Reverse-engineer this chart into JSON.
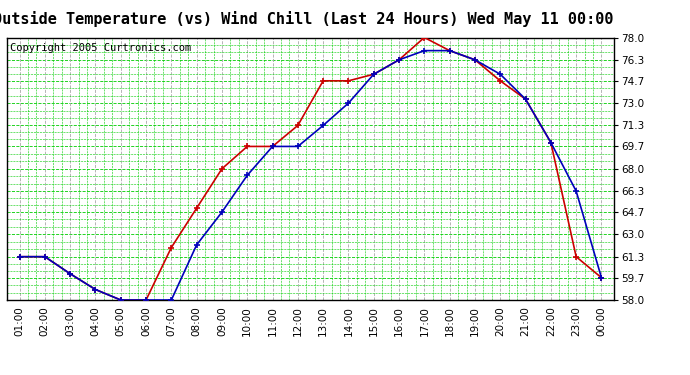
{
  "title": "Outside Temperature (vs) Wind Chill (Last 24 Hours) Wed May 11 00:00",
  "copyright": "Copyright 2005 Curtronics.com",
  "x_labels": [
    "01:00",
    "02:00",
    "03:00",
    "04:00",
    "05:00",
    "06:00",
    "07:00",
    "08:00",
    "09:00",
    "10:00",
    "11:00",
    "12:00",
    "13:00",
    "14:00",
    "15:00",
    "16:00",
    "17:00",
    "18:00",
    "19:00",
    "20:00",
    "21:00",
    "22:00",
    "23:00",
    "00:00"
  ],
  "outside_temp": [
    61.3,
    61.3,
    60.0,
    58.8,
    58.0,
    58.0,
    58.0,
    62.2,
    64.7,
    67.5,
    69.7,
    69.7,
    71.3,
    73.0,
    75.2,
    76.3,
    77.0,
    77.0,
    76.3,
    75.2,
    73.3,
    70.0,
    66.3,
    59.7
  ],
  "wind_chill": [
    61.3,
    61.3,
    60.0,
    58.8,
    58.0,
    58.0,
    62.0,
    65.0,
    68.0,
    69.7,
    69.7,
    71.3,
    74.7,
    74.7,
    75.2,
    76.3,
    78.0,
    77.0,
    76.3,
    74.7,
    73.3,
    70.0,
    61.3,
    59.7
  ],
  "temp_color": "#0000BB",
  "wind_color": "#CC0000",
  "bg_color": "#FFFFFF",
  "plot_bg": "#FFFFFF",
  "grid_color_h": "#00CC00",
  "grid_color_v": "#AAAAAA",
  "ylim": [
    58.0,
    78.0
  ],
  "yticks": [
    58.0,
    59.7,
    61.3,
    63.0,
    64.7,
    66.3,
    68.0,
    69.7,
    71.3,
    73.0,
    74.7,
    76.3,
    78.0
  ],
  "title_fontsize": 11,
  "copyright_fontsize": 7.5,
  "tick_fontsize": 7.5
}
